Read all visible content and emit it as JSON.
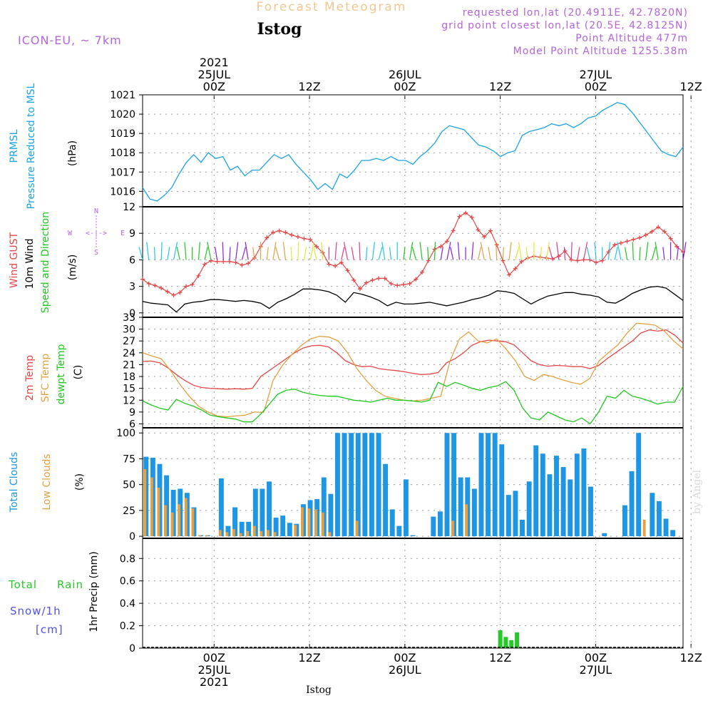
{
  "header": {
    "title": "Forecast Meteogram",
    "location": "Istog",
    "model": "ICON-EU, ~ 7km",
    "requested": "requested lon,lat (20.4911E, 42.7820N)",
    "grid_point": "grid point closest lon,lat (20.5E, 42.8125N)",
    "point_altitude": "Point Altitude 477m",
    "model_altitude": "Model Point Altitude 1255.38m"
  },
  "footer": {
    "location": "Istog",
    "watermark": "by Angel"
  },
  "time_axis": {
    "start_hour_utc": "24JUL 15Z",
    "step_hours": 1,
    "n_steps": 64,
    "top_labels": [
      {
        "hour": 9,
        "lines": [
          "2021",
          "25JUL",
          "00Z"
        ]
      },
      {
        "hour": 21,
        "lines": [
          "12Z"
        ]
      },
      {
        "hour": 33,
        "lines": [
          "26JUL",
          "00Z"
        ]
      },
      {
        "hour": 45,
        "lines": [
          "12Z"
        ]
      },
      {
        "hour": 57,
        "lines": [
          "27JUL",
          "00Z"
        ]
      },
      {
        "hour": 69,
        "lines": [
          "12Z"
        ]
      }
    ],
    "bottom_labels": [
      {
        "hour": 9,
        "lines": [
          "00Z",
          "25JUL",
          "2021"
        ]
      },
      {
        "hour": 21,
        "lines": [
          "12Z"
        ]
      },
      {
        "hour": 33,
        "lines": [
          "00Z",
          "26JUL"
        ]
      },
      {
        "hour": 45,
        "lines": [
          "12Z"
        ]
      },
      {
        "hour": 57,
        "lines": [
          "00Z",
          "27JUL"
        ]
      },
      {
        "hour": 69,
        "lines": [
          "12Z"
        ]
      }
    ]
  },
  "panel_labels": {
    "pressure": [
      "PRMSL",
      "Pressure Reduced to MSL",
      "(hPa)"
    ],
    "wind": [
      "Wind GUST",
      "10m Wind",
      "Speed and Direction",
      "(m/s)"
    ],
    "compass": {
      "n": "N",
      "s": "S",
      "w": "W",
      "e": "E",
      "arrows": "<-|->"
    },
    "temp": [
      "2m Temp",
      "SFC Temp",
      "dewpt Temp",
      "(C)"
    ],
    "clouds": [
      "Total Clouds",
      "Low Clouds",
      "(%)"
    ],
    "precip": [
      "Total",
      "Rain",
      "Snow/1h",
      "[cm]",
      "1hr Precip (mm)"
    ]
  },
  "colors": {
    "pressure": "#1aa3e6",
    "gust": "#e64646",
    "wind": "#000000",
    "t2m": "#e64646",
    "tsfc": "#e6a040",
    "dewpt": "#1ec81e",
    "total_clouds": "#1e96e6",
    "low_clouds": "#e6a040",
    "rain": "#28c828",
    "snow": "#5050e6",
    "header_purple": "#b464dc",
    "title_orange": "#f0c890"
  },
  "chart_data": [
    {
      "type": "line",
      "name": "pressure",
      "ylabel": "(hPa)",
      "ylim": [
        1015.2,
        1021
      ],
      "yticks": [
        1016,
        1017,
        1018,
        1019,
        1020,
        1021
      ],
      "series": [
        {
          "name": "PRMSL",
          "values": [
            1016.2,
            1015.6,
            1015.5,
            1015.8,
            1016.2,
            1016.9,
            1017.5,
            1017.9,
            1017.5,
            1018.0,
            1017.7,
            1017.8,
            1017.1,
            1017.3,
            1016.8,
            1017.1,
            1017.1,
            1017.5,
            1017.9,
            1017.7,
            1017.9,
            1017.4,
            1017.0,
            1016.6,
            1016.1,
            1016.4,
            1016.1,
            1016.9,
            1016.7,
            1017.1,
            1017.6,
            1017.6,
            1017.7,
            1017.6,
            1017.8,
            1017.6,
            1017.6,
            1017.4,
            1017.8,
            1018.1,
            1018.5,
            1019.1,
            1019.4,
            1019.3,
            1019.2,
            1018.8,
            1018.4,
            1018.3,
            1018.1,
            1017.8,
            1018.0,
            1018.1,
            1018.9,
            1019.1,
            1019.2,
            1019.3,
            1019.5,
            1019.4,
            1019.5,
            1019.3,
            1019.5,
            1019.8,
            1019.9,
            1020.2,
            1020.4,
            1020.6,
            1020.5,
            1020.1,
            1019.6,
            1019.1,
            1018.6,
            1018.1,
            1017.9,
            1017.8,
            1018.3
          ]
        }
      ]
    },
    {
      "type": "line",
      "name": "wind",
      "ylabel": "(m/s)",
      "ylim": [
        -0.5,
        12
      ],
      "yticks": [
        0,
        3,
        6,
        9,
        12
      ],
      "series": [
        {
          "name": "Wind GUST",
          "values": [
            3.8,
            3.3,
            3.1,
            2.8,
            2.4,
            2.0,
            2.3,
            3.0,
            3.2,
            4.2,
            5.5,
            5.9,
            5.8,
            5.8,
            5.8,
            5.7,
            5.4,
            5.6,
            6.2,
            7.5,
            8.5,
            9.1,
            9.3,
            9.1,
            8.8,
            8.6,
            8.4,
            8.3,
            7.5,
            6.8,
            5.5,
            5.3,
            5.7,
            4.8,
            3.7,
            2.7,
            3.4,
            3.7,
            3.9,
            3.9,
            3.3,
            3.1,
            3.2,
            3.3,
            3.8,
            4.6,
            5.9,
            7.2,
            7.5,
            8.1,
            9.3,
            10.9,
            11.3,
            10.8,
            9.4,
            8.6,
            9.3,
            7.7,
            5.9,
            4.3,
            5.0,
            5.8,
            6.2,
            6.4,
            6.3,
            6.2,
            6.1,
            6.4,
            7.0,
            6.0,
            5.9,
            6.0,
            6.0,
            5.7,
            5.9,
            6.9,
            7.7,
            7.9,
            8.1,
            8.3,
            8.5,
            8.8,
            9.2,
            9.7,
            9.2,
            8.4,
            7.5,
            6.9
          ]
        },
        {
          "name": "10m Wind",
          "values": [
            1.3,
            1.1,
            1.0,
            0.9,
            0.1,
            1.0,
            1.2,
            1.3,
            1.5,
            1.5,
            1.4,
            1.3,
            1.4,
            1.3,
            1.1,
            0.5,
            1.2,
            1.6,
            2.1,
            2.7,
            2.7,
            2.6,
            2.4,
            2.0,
            1.2,
            2.3,
            2.1,
            1.8,
            1.4,
            0.8,
            1.2,
            1.0,
            1.0,
            1.1,
            1.2,
            1.0,
            0.8,
            1.0,
            1.2,
            1.5,
            1.7,
            2.0,
            2.5,
            2.4,
            2.2,
            1.6,
            1.0,
            1.5,
            1.9,
            2.1,
            2.3,
            2.3,
            2.1,
            2.0,
            1.8,
            1.2,
            1.1,
            1.6,
            2.2,
            2.6,
            2.9,
            3.0,
            2.8,
            2.1,
            1.4
          ]
        }
      ]
    },
    {
      "type": "line",
      "name": "temperature",
      "ylabel": "(C)",
      "ylim": [
        5,
        33
      ],
      "yticks": [
        6,
        9,
        12,
        15,
        18,
        21,
        24,
        27,
        30,
        33
      ],
      "series": [
        {
          "name": "2m Temp",
          "values": [
            21.8,
            21.9,
            21.5,
            20.2,
            18.5,
            17.0,
            15.8,
            15.2,
            15.0,
            14.9,
            14.8,
            14.9,
            14.8,
            15.0,
            18.0,
            19.5,
            21.0,
            22.5,
            24.0,
            25.2,
            25.8,
            25.9,
            25.5,
            24.0,
            22.0,
            21.0,
            20.5,
            20.6,
            20.0,
            19.7,
            19.5,
            19.2,
            18.8,
            18.5,
            18.6,
            19.0,
            21.5,
            22.5,
            24.0,
            25.9,
            26.8,
            27.2,
            27.0,
            26.8,
            26.0,
            24.0,
            22.0,
            21.0,
            20.6,
            20.8,
            20.7,
            20.5,
            20.5,
            20.0,
            20.8,
            22.5,
            24.0,
            25.5,
            27.0,
            29.0,
            29.8,
            29.5,
            29.8,
            28.5,
            26.5
          ]
        },
        {
          "name": "SFC Temp",
          "values": [
            24.0,
            23.2,
            22.5,
            19.5,
            16.0,
            13.0,
            10.5,
            9.0,
            8.0,
            7.8,
            8.0,
            8.2,
            9.0,
            8.9,
            17.0,
            20.8,
            23.5,
            25.8,
            27.5,
            28.2,
            28.0,
            27.0,
            24.0,
            20.0,
            17.0,
            14.5,
            13.0,
            12.5,
            12.0,
            11.8,
            12.0,
            12.5,
            13.0,
            22.0,
            27.5,
            29.3,
            27.0,
            26.5,
            27.5,
            25.0,
            22.0,
            18.0,
            17.0,
            18.5,
            18.0,
            17.2,
            16.5,
            16.0,
            17.5,
            22.0,
            24.0,
            26.0,
            29.0,
            31.5,
            31.3,
            31.0,
            29.5,
            27.0,
            25.0
          ]
        },
        {
          "name": "dewpt Temp",
          "values": [
            11.8,
            10.8,
            10.0,
            9.5,
            12.2,
            11.2,
            10.5,
            9.5,
            8.2,
            7.8,
            7.5,
            7.2,
            6.5,
            6.5,
            8.5,
            11.0,
            13.5,
            14.5,
            14.8,
            14.0,
            13.5,
            13.2,
            13.0,
            13.0,
            12.5,
            12.0,
            11.8,
            11.5,
            12.0,
            12.5,
            12.0,
            12.0,
            11.8,
            11.5,
            12.0,
            16.5,
            15.5,
            16.5,
            15.8,
            15.0,
            14.5,
            15.2,
            15.6,
            16.7,
            14.5,
            10.0,
            7.5,
            7.0,
            9.0,
            8.0,
            7.0,
            6.5,
            7.5,
            6.0,
            9.0,
            13.0,
            12.5,
            14.5,
            13.0,
            12.5,
            11.8,
            11.0,
            11.5,
            11.5,
            15.5
          ]
        }
      ]
    },
    {
      "type": "bar",
      "name": "clouds",
      "ylabel": "(%)",
      "ylim": [
        -2,
        105
      ],
      "yticks": [
        0,
        25,
        50,
        75,
        100
      ],
      "series": [
        {
          "name": "Total Clouds",
          "values": [
            77,
            76,
            70,
            59,
            45,
            46,
            42,
            28,
            1,
            1,
            0,
            56,
            10,
            28,
            14,
            14,
            46,
            46,
            53,
            18,
            20,
            13,
            12,
            31,
            35,
            36,
            57,
            41,
            100,
            100,
            100,
            100,
            100,
            100,
            100,
            70,
            26,
            10,
            55,
            1,
            0,
            0,
            19,
            24,
            100,
            100,
            57,
            57,
            46,
            100,
            100,
            100,
            89,
            40,
            44,
            16,
            53,
            88,
            80,
            60,
            78,
            67,
            55,
            80,
            85,
            48,
            0,
            3,
            0,
            0,
            30,
            63,
            100,
            0,
            42,
            34,
            17,
            6,
            0
          ]
        },
        {
          "name": "Low Clouds",
          "values": [
            65,
            57,
            47,
            30,
            23,
            31,
            37,
            27,
            1,
            1,
            0,
            6,
            4,
            7,
            3,
            5,
            10,
            5,
            6,
            4,
            0,
            0,
            11,
            28,
            27,
            26,
            23,
            4,
            0,
            0,
            0,
            15,
            0,
            0,
            0,
            0,
            0,
            0,
            0,
            0,
            0,
            0,
            0,
            0,
            0,
            15,
            0,
            31,
            0,
            0,
            0,
            0,
            0,
            0,
            0,
            0,
            0,
            0,
            0,
            0,
            0,
            0,
            0,
            0,
            0,
            0,
            0,
            0,
            0,
            0,
            0,
            0,
            0,
            16,
            0,
            0,
            0,
            0,
            0
          ]
        }
      ]
    },
    {
      "type": "bar",
      "name": "precipitation",
      "ylabel": "1hr Precip (mm)",
      "ylim": [
        0,
        0.98
      ],
      "yticks": [
        0,
        0.2,
        0.4,
        0.6,
        0.8
      ],
      "series": [
        {
          "name": "Total Rain",
          "start_hour": 45,
          "values": [
            0.16,
            0.1,
            0.07,
            0.14
          ]
        }
      ]
    }
  ]
}
